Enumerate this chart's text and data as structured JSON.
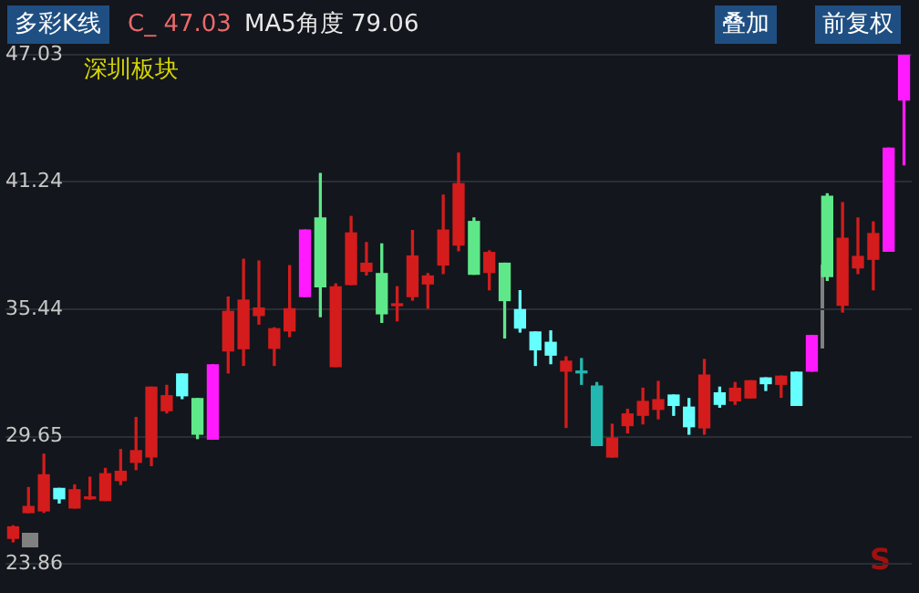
{
  "chart_data": {
    "type": "candlestick",
    "annotations": [
      "多彩K线",
      "C_ 47.03",
      "MA5角度 79.06",
      "叠加",
      "前复权",
      "深圳板块",
      "S"
    ],
    "categories": [
      null,
      null,
      null,
      null,
      null,
      null,
      null,
      null,
      null,
      null,
      null,
      null,
      null,
      null,
      null,
      null,
      null,
      null,
      null,
      null,
      null,
      null,
      null,
      null,
      null,
      null,
      null,
      null,
      null,
      null,
      null,
      null,
      null,
      null,
      null,
      null,
      null,
      null,
      null,
      null,
      null,
      null,
      null,
      null,
      null,
      null,
      null,
      null,
      null,
      null,
      null,
      null,
      null,
      null,
      null,
      null,
      null,
      null,
      null
    ],
    "ohlc": [
      [
        25.02,
        25.59,
        24.86,
        25.54
      ],
      [
        26.19,
        27.33,
        26.19,
        26.47
      ],
      [
        26.27,
        28.85,
        26.2,
        27.91
      ],
      [
        27.29,
        27.29,
        26.63,
        26.82
      ],
      [
        26.4,
        27.45,
        26.4,
        27.23
      ],
      [
        26.82,
        27.8,
        26.8,
        26.85
      ],
      [
        26.74,
        28.2,
        26.74,
        27.96
      ],
      [
        27.65,
        29.06,
        27.47,
        28.07
      ],
      [
        28.48,
        30.52,
        28.15,
        29.01
      ],
      [
        28.72,
        31.9,
        28.33,
        31.9
      ],
      [
        30.83,
        31.98,
        30.73,
        31.51
      ],
      [
        32.5,
        32.5,
        31.38,
        31.51
      ],
      [
        31.38,
        31.38,
        29.56,
        29.76
      ],
      [
        29.53,
        32.92,
        29.53,
        32.92
      ],
      [
        33.55,
        36.0,
        32.55,
        35.35
      ],
      [
        33.65,
        37.72,
        32.89,
        35.86
      ],
      [
        35.16,
        37.64,
        34.77,
        35.5
      ],
      [
        33.67,
        34.6,
        32.89,
        34.56
      ],
      [
        34.46,
        37.43,
        34.2,
        35.47
      ],
      [
        36.02,
        39.05,
        36.02,
        39.05
      ],
      [
        39.6,
        41.63,
        35.11,
        36.47
      ],
      [
        32.84,
        36.6,
        32.84,
        36.47
      ],
      [
        36.57,
        39.67,
        36.57,
        38.92
      ],
      [
        37.17,
        38.48,
        37.01,
        37.54
      ],
      [
        37.07,
        38.42,
        34.85,
        35.24
      ],
      [
        35.61,
        36.47,
        34.92,
        35.61
      ],
      [
        36.02,
        39.03,
        35.86,
        37.87
      ],
      [
        36.6,
        37.07,
        35.5,
        36.96
      ],
      [
        37.46,
        40.64,
        37.07,
        39.05
      ],
      [
        38.37,
        42.55,
        38.11,
        41.16
      ],
      [
        39.44,
        39.6,
        37.04,
        37.04
      ],
      [
        37.12,
        38.1,
        36.33,
        38.03
      ],
      [
        37.54,
        37.54,
        34.14,
        35.84
      ],
      [
        35.43,
        36.29,
        34.41,
        34.59
      ],
      [
        34.41,
        34.41,
        32.89,
        33.6
      ],
      [
        33.94,
        34.46,
        32.97,
        33.36
      ],
      [
        32.63,
        33.28,
        30.07,
        33.08
      ],
      [
        32.55,
        33.2,
        32.03,
        32.55
      ],
      [
        31.95,
        32.11,
        29.24,
        29.24
      ],
      [
        28.72,
        30.21,
        28.72,
        29.58
      ],
      [
        30.15,
        30.89,
        29.82,
        30.68
      ],
      [
        30.62,
        31.85,
        30.23,
        31.25
      ],
      [
        30.89,
        32.16,
        30.46,
        31.33
      ],
      [
        31.54,
        31.54,
        30.62,
        31.07
      ],
      [
        30.99,
        31.38,
        29.76,
        30.1
      ],
      [
        30.05,
        33.16,
        29.76,
        32.45
      ],
      [
        31.64,
        31.9,
        30.99,
        31.12
      ],
      [
        31.28,
        32.11,
        31.12,
        31.85
      ],
      [
        31.41,
        32.19,
        31.41,
        32.19
      ],
      [
        32.32,
        32.32,
        31.75,
        32.06
      ],
      [
        32.03,
        32.4,
        31.44,
        32.4
      ],
      [
        32.58,
        32.58,
        31.07,
        31.07
      ],
      [
        32.63,
        34.25,
        32.63,
        34.25
      ],
      [
        40.59,
        40.7,
        36.76,
        36.94
      ],
      [
        35.63,
        40.3,
        35.32,
        38.68
      ],
      [
        37.33,
        39.6,
        37.07,
        37.85
      ],
      [
        37.72,
        39.42,
        36.33,
        38.89
      ],
      [
        38.09,
        42.78,
        38.09,
        42.78
      ],
      [
        44.97,
        47.03,
        42.02,
        47.03
      ]
    ],
    "colors": [
      "#d41c1c",
      "#d41c1c",
      "#d41c1c",
      "#66ffff",
      "#d41c1c",
      "#d41c1c",
      "#d41c1c",
      "#d41c1c",
      "#d41c1c",
      "#d41c1c",
      "#d41c1c",
      "#66ffff",
      "#5fe88a",
      "#ff1aff",
      "#d41c1c",
      "#d41c1c",
      "#d41c1c",
      "#d41c1c",
      "#d41c1c",
      "#ff1aff",
      "#5fe88a",
      "#d41c1c",
      "#d41c1c",
      "#d41c1c",
      "#5fe88a",
      "#d41c1c",
      "#d41c1c",
      "#d41c1c",
      "#d41c1c",
      "#d41c1c",
      "#5fe88a",
      "#d41c1c",
      "#5fe88a",
      "#66ffff",
      "#66ffff",
      "#66ffff",
      "#d41c1c",
      "#22b8b0",
      "#22b8b0",
      "#d41c1c",
      "#d41c1c",
      "#d41c1c",
      "#d41c1c",
      "#66ffff",
      "#66ffff",
      "#d41c1c",
      "#66ffff",
      "#d41c1c",
      "#d41c1c",
      "#66ffff",
      "#d41c1c",
      "#66ffff",
      "#ff1aff",
      "#5fe88a",
      "#d41c1c",
      "#d41c1c",
      "#d41c1c",
      "#ff1aff",
      "#ff1aff"
    ],
    "ylim": [
      23.86,
      47.03
    ],
    "yticks": [
      23.86,
      29.65,
      35.44,
      41.24,
      47.03
    ],
    "grid": "y",
    "tick_labels": "y"
  }
}
